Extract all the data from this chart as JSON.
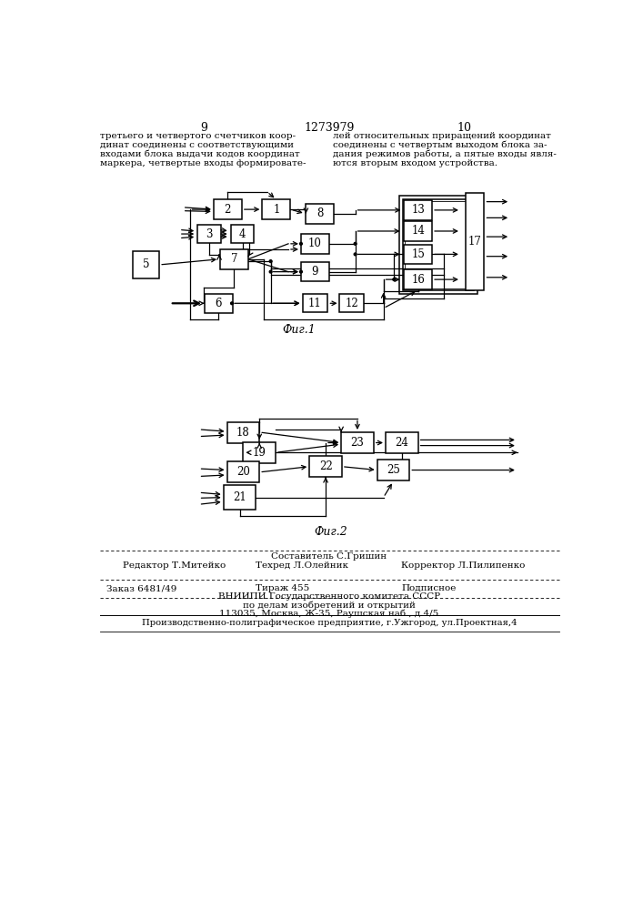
{
  "page_numbers": [
    "9",
    "1273979",
    "10"
  ],
  "text_left": "третьего и четвертого счетчиков коор-\nдинат соединены с соответствующими\nвходами блока выдачи кодов координат\nмаркера, четвертые входы формировате-",
  "text_right": "лей относительных приращений координат\nсоединены с четвертым выходом блока за-\nдания режимов работы, а пятые входы явля-\nются вторым входом устройства.",
  "fig1_label": "Фиг.1",
  "fig2_label": "Фиг.2",
  "footer_line1": "Составитель С.Гришин",
  "footer_line2_left": "Редактор Т.Митейко",
  "footer_line2_mid": "Техред Л.Олейник",
  "footer_line2_right": "Корректор Л.Пилипенко",
  "footer_line3_left": "Заказ 6481/49",
  "footer_line3_mid": "Тираж 455",
  "footer_line3_right": "Подписное",
  "footer_line4": "ВНИИПИ Государственного комитета СССР",
  "footer_line5": "по делам изобретений и открытий",
  "footer_line6": "113035, Москва, Ж-35, Раушская наб., д.4/5",
  "footer_line7": "Производственно-полиграфическое предприятие, г.Ужгород, ул.Проектная,4",
  "bg_color": "#ffffff"
}
